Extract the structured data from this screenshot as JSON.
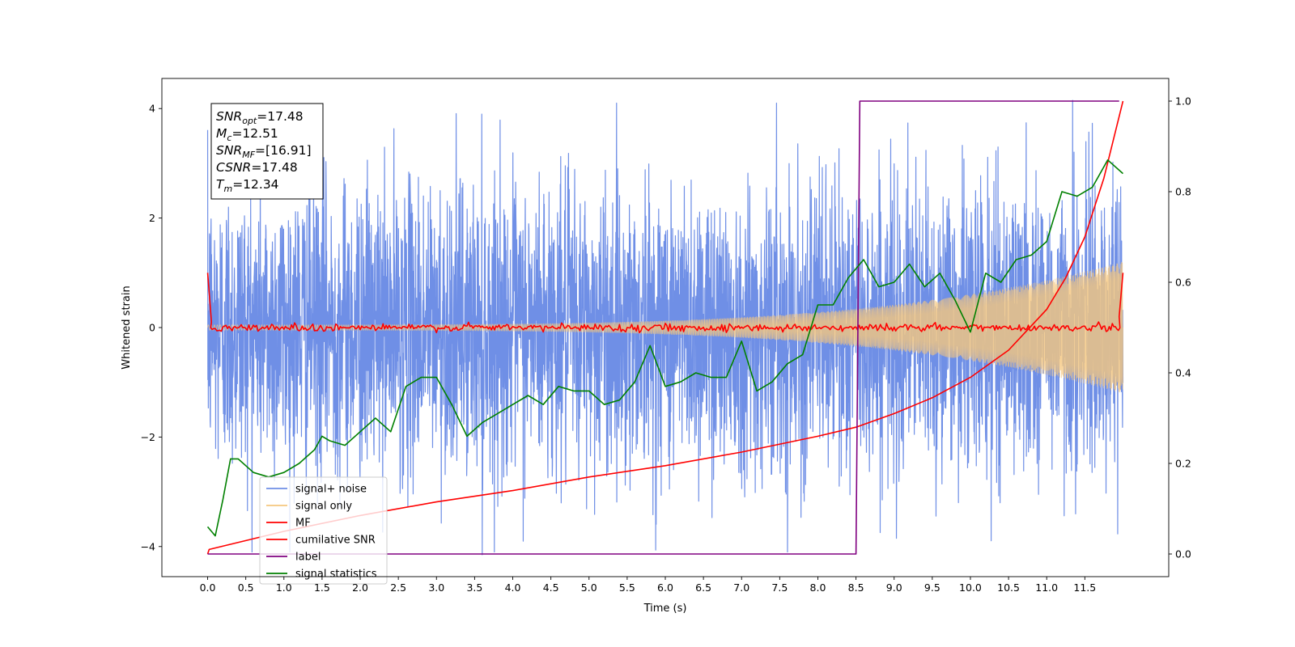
{
  "chart_data": {
    "type": "line",
    "title": "",
    "xlabel": "Time (s)",
    "ylabel": "Whitened strain",
    "y2label": "",
    "xlim": [
      -0.6,
      12.6
    ],
    "ylim": [
      -4.55,
      4.55
    ],
    "y2lim": [
      -0.05,
      1.05
    ],
    "xticks": [
      0.0,
      0.5,
      1.0,
      1.5,
      2.0,
      2.5,
      3.0,
      3.5,
      4.0,
      4.5,
      5.0,
      5.5,
      6.0,
      6.5,
      7.0,
      7.5,
      8.0,
      8.5,
      9.0,
      9.5,
      10.0,
      10.5,
      11.0,
      11.5
    ],
    "xtick_labels": [
      "0.0",
      "0.5",
      "1.0",
      "1.5",
      "2.0",
      "2.5",
      "3.0",
      "3.5",
      "4.0",
      "4.5",
      "5.0",
      "5.5",
      "6.0",
      "6.5",
      "7.0",
      "7.5",
      "8.0",
      "8.5",
      "9.0",
      "9.5",
      "10.0",
      "10.5",
      "11.0",
      "11.5"
    ],
    "yticks": [
      -4,
      -2,
      0,
      2,
      4
    ],
    "ytick_labels": [
      "−4",
      "−2",
      "0",
      "2",
      "4"
    ],
    "y2ticks": [
      0.0,
      0.2,
      0.4,
      0.6,
      0.8,
      1.0
    ],
    "y2tick_labels": [
      "0.0",
      "0.2",
      "0.4",
      "0.6",
      "0.8",
      "1.0"
    ],
    "grid": false,
    "legend_position": "lower-left",
    "annotation": [
      {
        "base": "SNR",
        "sub": "opt",
        "rest": "=17.48"
      },
      {
        "base": "M",
        "sub": "c",
        "rest": "=12.51"
      },
      {
        "base": "SNR",
        "sub": "MF",
        "rest": "=[16.91]"
      },
      {
        "base": "CSNR",
        "sub": "",
        "rest": "=17.48"
      },
      {
        "base": "T",
        "sub": "m",
        "rest": "=12.34"
      }
    ],
    "series": [
      {
        "name": "signal+ noise",
        "axis": "left",
        "color": "#6f8fe6",
        "kind": "noise",
        "description_values": {
          "t_range": [
            0.0,
            12.0
          ],
          "sigma": 1.3,
          "min": -4.15,
          "max": 4.15
        }
      },
      {
        "name": "signal only",
        "axis": "left",
        "color": "#f5c77e",
        "kind": "chirp",
        "description_values": {
          "t_range": [
            0.0,
            12.0
          ],
          "amp_start": 0.05,
          "amp_end": 1.2
        }
      },
      {
        "name": "MF",
        "axis": "left",
        "color": "#ff0000",
        "kind": "mf",
        "x": [
          0.0,
          0.05,
          0.1,
          11.9,
          11.95,
          12.0
        ],
        "y": [
          1.0,
          0.1,
          0.0,
          0.0,
          0.2,
          1.0
        ]
      },
      {
        "name": "cumilative SNR",
        "axis": "right",
        "color": "#ff0000",
        "x": [
          0.0,
          0.02,
          1.0,
          2.0,
          3.0,
          4.0,
          5.0,
          6.0,
          7.0,
          8.0,
          8.5,
          9.0,
          9.5,
          10.0,
          10.5,
          11.0,
          11.25,
          11.5,
          11.75,
          12.0
        ],
        "y": [
          0.0,
          0.01,
          0.05,
          0.085,
          0.115,
          0.14,
          0.17,
          0.195,
          0.225,
          0.26,
          0.28,
          0.31,
          0.345,
          0.39,
          0.45,
          0.54,
          0.61,
          0.7,
          0.83,
          1.0
        ]
      },
      {
        "name": "label",
        "axis": "right",
        "color": "#800080",
        "x": [
          0.0,
          8.5,
          8.55,
          11.95
        ],
        "y": [
          0.0,
          0.0,
          1.0,
          1.0
        ]
      },
      {
        "name": "signal statistics",
        "axis": "right",
        "color": "#008000",
        "x": [
          0.0,
          0.1,
          0.2,
          0.3,
          0.4,
          0.6,
          0.8,
          1.0,
          1.2,
          1.4,
          1.5,
          1.6,
          1.8,
          2.0,
          2.2,
          2.4,
          2.6,
          2.8,
          3.0,
          3.2,
          3.4,
          3.6,
          3.8,
          4.0,
          4.2,
          4.4,
          4.6,
          4.8,
          5.0,
          5.2,
          5.4,
          5.6,
          5.8,
          6.0,
          6.2,
          6.4,
          6.6,
          6.8,
          7.0,
          7.2,
          7.4,
          7.6,
          7.8,
          8.0,
          8.2,
          8.4,
          8.6,
          8.8,
          9.0,
          9.2,
          9.4,
          9.6,
          9.8,
          10.0,
          10.2,
          10.4,
          10.6,
          10.8,
          11.0,
          11.2,
          11.4,
          11.6,
          11.8,
          12.0
        ],
        "y": [
          0.06,
          0.04,
          0.12,
          0.21,
          0.21,
          0.18,
          0.17,
          0.18,
          0.2,
          0.23,
          0.26,
          0.25,
          0.24,
          0.27,
          0.3,
          0.27,
          0.37,
          0.39,
          0.39,
          0.33,
          0.26,
          0.29,
          0.31,
          0.33,
          0.35,
          0.33,
          0.37,
          0.36,
          0.36,
          0.33,
          0.34,
          0.38,
          0.46,
          0.37,
          0.38,
          0.4,
          0.39,
          0.39,
          0.47,
          0.36,
          0.38,
          0.42,
          0.44,
          0.55,
          0.55,
          0.61,
          0.65,
          0.59,
          0.6,
          0.64,
          0.59,
          0.62,
          0.56,
          0.49,
          0.62,
          0.6,
          0.65,
          0.66,
          0.69,
          0.8,
          0.79,
          0.81,
          0.87,
          0.84
        ]
      }
    ]
  }
}
